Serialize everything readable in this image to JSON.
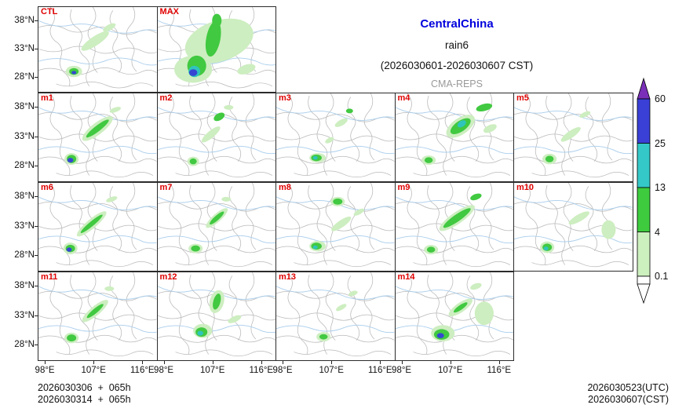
{
  "title": {
    "region": "CentralChina",
    "variable": "rain6",
    "period": "(2026030601-2026030607 CST)",
    "model": "CMA-REPS"
  },
  "colors": {
    "region_title": "#0000dd",
    "model_label": "#9a9a9a",
    "panel_label": "#e00000",
    "boundary_line": "#b9b9b9",
    "river_line": "#a8cdec"
  },
  "axes": {
    "y_ticks": [
      "38°N",
      "33°N",
      "28°N"
    ],
    "x_ticks": [
      "98°E",
      "107°E",
      "116°E"
    ]
  },
  "footer": {
    "run1": "2026030306  +  065h",
    "run2": "2026030314  +  065h",
    "valid_utc": "2026030523(UTC)",
    "valid_cst": "2026030607(CST)"
  },
  "colorbar": {
    "levels": [
      "60",
      "25",
      "13",
      "4",
      "0.1"
    ],
    "segment_colors": [
      "#3a3fd6",
      "#35c8c8",
      "#3ecc3e",
      "#cdf0bf"
    ],
    "over_color": "#7a30b8",
    "under_color": "#ffffff"
  },
  "chart_data": {
    "type": "heatmap",
    "description": "4x5 grid of ensemble precipitation (rain6, mm/6h) maps over Central China; shading levels 0.1/4/13/25/60",
    "palette": {
      "l": "#cdeec0",
      "g": "#41c941",
      "t": "#2fc4bc",
      "b": "#3547d2"
    },
    "panels": [
      {
        "label": "CTL",
        "row": 0,
        "col": 0,
        "blobs": [
          [
            30,
            57,
            7,
            5,
            "l",
            0
          ],
          [
            48,
            30,
            14,
            4,
            "l",
            -35
          ],
          [
            60,
            18,
            6,
            2.5,
            "l",
            -30
          ],
          [
            30,
            57,
            4,
            3,
            "g",
            0
          ],
          [
            30,
            58,
            2,
            1.5,
            "b",
            0
          ]
        ]
      },
      {
        "label": "MAX",
        "row": 0,
        "col": 1,
        "blobs": [
          [
            52,
            30,
            30,
            18,
            "l",
            -20
          ],
          [
            30,
            55,
            16,
            12,
            "l",
            0
          ],
          [
            70,
            30,
            10,
            5,
            "l",
            -30
          ],
          [
            75,
            55,
            8,
            4,
            "l",
            -20
          ],
          [
            47,
            28,
            6,
            16,
            "g",
            10
          ],
          [
            50,
            12,
            4,
            6,
            "g",
            0
          ],
          [
            33,
            52,
            8,
            9,
            "g",
            0
          ],
          [
            31,
            57,
            5,
            5,
            "t",
            0
          ],
          [
            30,
            58,
            3.5,
            3,
            "b",
            0
          ]
        ]
      },
      {
        "label": "m1",
        "row": 1,
        "col": 0,
        "blobs": [
          [
            50,
            30,
            16,
            5,
            "l",
            -38
          ],
          [
            28,
            56,
            6,
            5,
            "l",
            0
          ],
          [
            65,
            14,
            5,
            2,
            "l",
            -20
          ],
          [
            50,
            30,
            12,
            2.5,
            "g",
            -38
          ],
          [
            28,
            56,
            4,
            3.5,
            "g",
            0
          ],
          [
            27,
            57,
            2.5,
            2,
            "b",
            0
          ]
        ]
      },
      {
        "label": "m2",
        "row": 1,
        "col": 1,
        "blobs": [
          [
            45,
            35,
            10,
            3,
            "l",
            -40
          ],
          [
            30,
            58,
            5,
            4,
            "l",
            0
          ],
          [
            60,
            12,
            4,
            2,
            "l",
            0
          ],
          [
            52,
            20,
            5,
            3,
            "g",
            -30
          ],
          [
            30,
            58,
            3,
            2.5,
            "g",
            0
          ]
        ]
      },
      {
        "label": "m3",
        "row": 1,
        "col": 2,
        "blobs": [
          [
            35,
            55,
            7,
            4,
            "l",
            0
          ],
          [
            55,
            25,
            6,
            2.5,
            "l",
            -30
          ],
          [
            45,
            40,
            4,
            2,
            "l",
            -30
          ],
          [
            34,
            55,
            4.5,
            2.8,
            "g",
            0
          ],
          [
            62,
            15,
            3,
            2,
            "g",
            0
          ],
          [
            33,
            55,
            2,
            1.5,
            "t",
            0
          ]
        ]
      },
      {
        "label": "m4",
        "row": 1,
        "col": 3,
        "blobs": [
          [
            55,
            28,
            14,
            7,
            "l",
            -35
          ],
          [
            28,
            57,
            6,
            4,
            "l",
            0
          ],
          [
            80,
            30,
            6,
            3,
            "l",
            -25
          ],
          [
            55,
            28,
            10,
            4.5,
            "g",
            -35
          ],
          [
            28,
            57,
            3.5,
            2.5,
            "g",
            0
          ],
          [
            75,
            12,
            7,
            3,
            "g",
            -15
          ],
          [
            56,
            26,
            4,
            2.5,
            "t",
            -35
          ]
        ]
      },
      {
        "label": "m5",
        "row": 1,
        "col": 4,
        "blobs": [
          [
            30,
            56,
            6,
            4.5,
            "l",
            0
          ],
          [
            48,
            35,
            10,
            3,
            "l",
            -35
          ],
          [
            60,
            18,
            5,
            2,
            "l",
            -25
          ],
          [
            30,
            56,
            3.5,
            2.8,
            "g",
            0
          ]
        ]
      },
      {
        "label": "m6",
        "row": 2,
        "col": 0,
        "blobs": [
          [
            45,
            35,
            16,
            4,
            "l",
            -40
          ],
          [
            27,
            56,
            6,
            5,
            "l",
            0
          ],
          [
            62,
            14,
            5,
            2,
            "l",
            -20
          ],
          [
            45,
            35,
            12,
            2,
            "g",
            -40
          ],
          [
            27,
            56,
            4,
            3.2,
            "g",
            0
          ],
          [
            26,
            57,
            2.2,
            1.8,
            "b",
            0
          ]
        ]
      },
      {
        "label": "m7",
        "row": 2,
        "col": 1,
        "blobs": [
          [
            50,
            30,
            12,
            3.5,
            "l",
            -42
          ],
          [
            32,
            56,
            6,
            4,
            "l",
            0
          ],
          [
            58,
            14,
            4,
            2,
            "l",
            0
          ],
          [
            50,
            30,
            8,
            2,
            "g",
            -42
          ],
          [
            32,
            56,
            3.8,
            2.6,
            "g",
            0
          ]
        ]
      },
      {
        "label": "m8",
        "row": 2,
        "col": 2,
        "blobs": [
          [
            35,
            54,
            7,
            4.5,
            "l",
            0
          ],
          [
            52,
            16,
            6,
            4,
            "l",
            0
          ],
          [
            55,
            35,
            10,
            3,
            "l",
            -35
          ],
          [
            70,
            25,
            5,
            2,
            "l",
            -30
          ],
          [
            34,
            54,
            4.5,
            3,
            "g",
            0
          ],
          [
            52,
            16,
            4,
            2.6,
            "g",
            0
          ],
          [
            33,
            55,
            2,
            1.5,
            "t",
            0
          ]
        ]
      },
      {
        "label": "m9",
        "row": 2,
        "col": 3,
        "blobs": [
          [
            52,
            30,
            18,
            5,
            "l",
            -35
          ],
          [
            30,
            57,
            6,
            4,
            "l",
            0
          ],
          [
            52,
            30,
            14,
            3,
            "g",
            -35
          ],
          [
            30,
            57,
            3.5,
            2.5,
            "g",
            0
          ],
          [
            68,
            12,
            5,
            2.5,
            "g",
            -20
          ]
        ]
      },
      {
        "label": "m10",
        "row": 2,
        "col": 4,
        "blobs": [
          [
            28,
            55,
            6,
            5,
            "l",
            0
          ],
          [
            55,
            30,
            10,
            3,
            "l",
            -30
          ],
          [
            80,
            40,
            6,
            8,
            "l",
            0
          ],
          [
            28,
            55,
            4,
            3.2,
            "g",
            0
          ],
          [
            27,
            56,
            2,
            1.6,
            "t",
            0
          ]
        ]
      },
      {
        "label": "m11",
        "row": 3,
        "col": 0,
        "blobs": [
          [
            48,
            33,
            14,
            4,
            "l",
            -40
          ],
          [
            28,
            56,
            6,
            4.5,
            "l",
            0
          ],
          [
            60,
            14,
            4,
            2,
            "l",
            0
          ],
          [
            48,
            33,
            9,
            2,
            "g",
            -40
          ],
          [
            28,
            56,
            4,
            3,
            "g",
            0
          ]
        ]
      },
      {
        "label": "m12",
        "row": 3,
        "col": 1,
        "blobs": [
          [
            38,
            50,
            8,
            6,
            "l",
            0
          ],
          [
            50,
            25,
            6,
            10,
            "l",
            15
          ],
          [
            65,
            40,
            6,
            2.5,
            "l",
            -25
          ],
          [
            37,
            51,
            5,
            4,
            "g",
            0
          ],
          [
            50,
            25,
            3,
            7,
            "g",
            15
          ],
          [
            36,
            52,
            2.5,
            2,
            "t",
            0
          ]
        ]
      },
      {
        "label": "m13",
        "row": 3,
        "col": 2,
        "blobs": [
          [
            40,
            55,
            6,
            4,
            "l",
            0
          ],
          [
            55,
            30,
            5,
            2,
            "l",
            -30
          ],
          [
            65,
            18,
            4,
            2,
            "l",
            -20
          ],
          [
            40,
            55,
            3.5,
            2.3,
            "g",
            0
          ]
        ]
      },
      {
        "label": "m14",
        "row": 3,
        "col": 3,
        "blobs": [
          [
            40,
            52,
            10,
            7,
            "l",
            0
          ],
          [
            55,
            30,
            12,
            4,
            "l",
            -35
          ],
          [
            75,
            35,
            8,
            10,
            "l",
            0
          ],
          [
            68,
            12,
            5,
            2.5,
            "l",
            -20
          ],
          [
            39,
            53,
            6.5,
            4.5,
            "g",
            0
          ],
          [
            55,
            30,
            7,
            2,
            "g",
            -35
          ],
          [
            38,
            54,
            3,
            2.2,
            "b",
            0
          ]
        ]
      }
    ]
  }
}
